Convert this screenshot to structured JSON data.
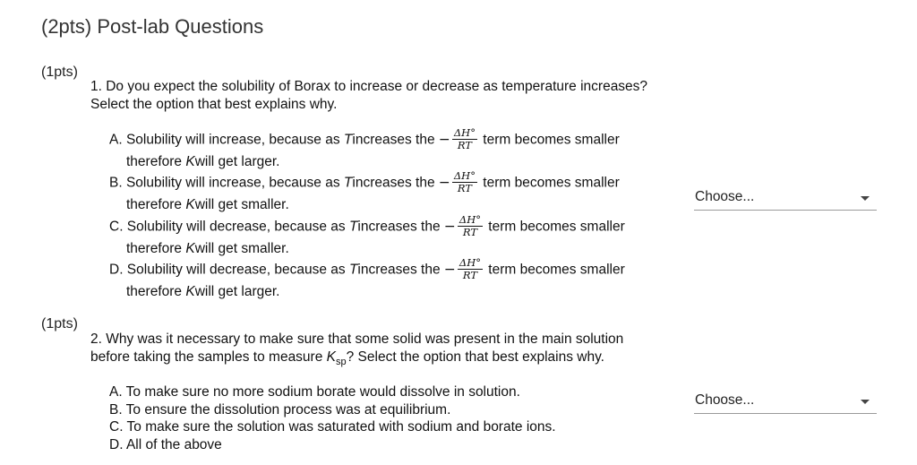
{
  "page": {
    "title": "(2pts) Post-lab Questions"
  },
  "q1": {
    "points": "(1pts)",
    "prompt_line1": "1. Do you expect the solubility of Borax to increase or decrease as temperature increases?",
    "prompt_line2": "Select the option that best explains why.",
    "options": [
      {
        "pre": "A. Solubility will increase, because as ",
        "var": "T",
        "mid": "increases the ",
        "post": " term becomes smaller",
        "l2a": "therefore ",
        "l2var": "K",
        "l2b": "will get larger."
      },
      {
        "pre": "B. Solubility will increase, because as ",
        "var": "T",
        "mid": "increases the ",
        "post": " term becomes smaller",
        "l2a": "therefore ",
        "l2var": "K",
        "l2b": "will get smaller."
      },
      {
        "pre": "C. Solubility will decrease, because as ",
        "var": "T",
        "mid": "increases the ",
        "post": " term becomes smaller",
        "l2a": "therefore ",
        "l2var": "K",
        "l2b": "will get smaller."
      },
      {
        "pre": "D. Solubility will decrease, because as ",
        "var": "T",
        "mid": "increases the ",
        "post": " term becomes smaller",
        "l2a": "therefore ",
        "l2var": "K",
        "l2b": "will get larger."
      }
    ],
    "fraction": {
      "neg": "−",
      "num": "ΔH°",
      "den": "RT"
    },
    "select_value": "Choose..."
  },
  "q2": {
    "points": "(1pts)",
    "prompt_line1": "2. Why was it necessary to make sure that some solid was present in the main solution",
    "prompt_line2a": "before taking the samples to measure ",
    "prompt_k": "K",
    "prompt_sub": "sp",
    "prompt_line2b": "? Select the option that best explains why.",
    "options": [
      "A. To make sure no more sodium borate would dissolve in solution.",
      "B. To ensure the dissolution process was at equilibrium.",
      "C. To make sure the solution was saturated with sodium and borate ions.",
      "D. All of the above"
    ],
    "select_value": "Choose..."
  }
}
